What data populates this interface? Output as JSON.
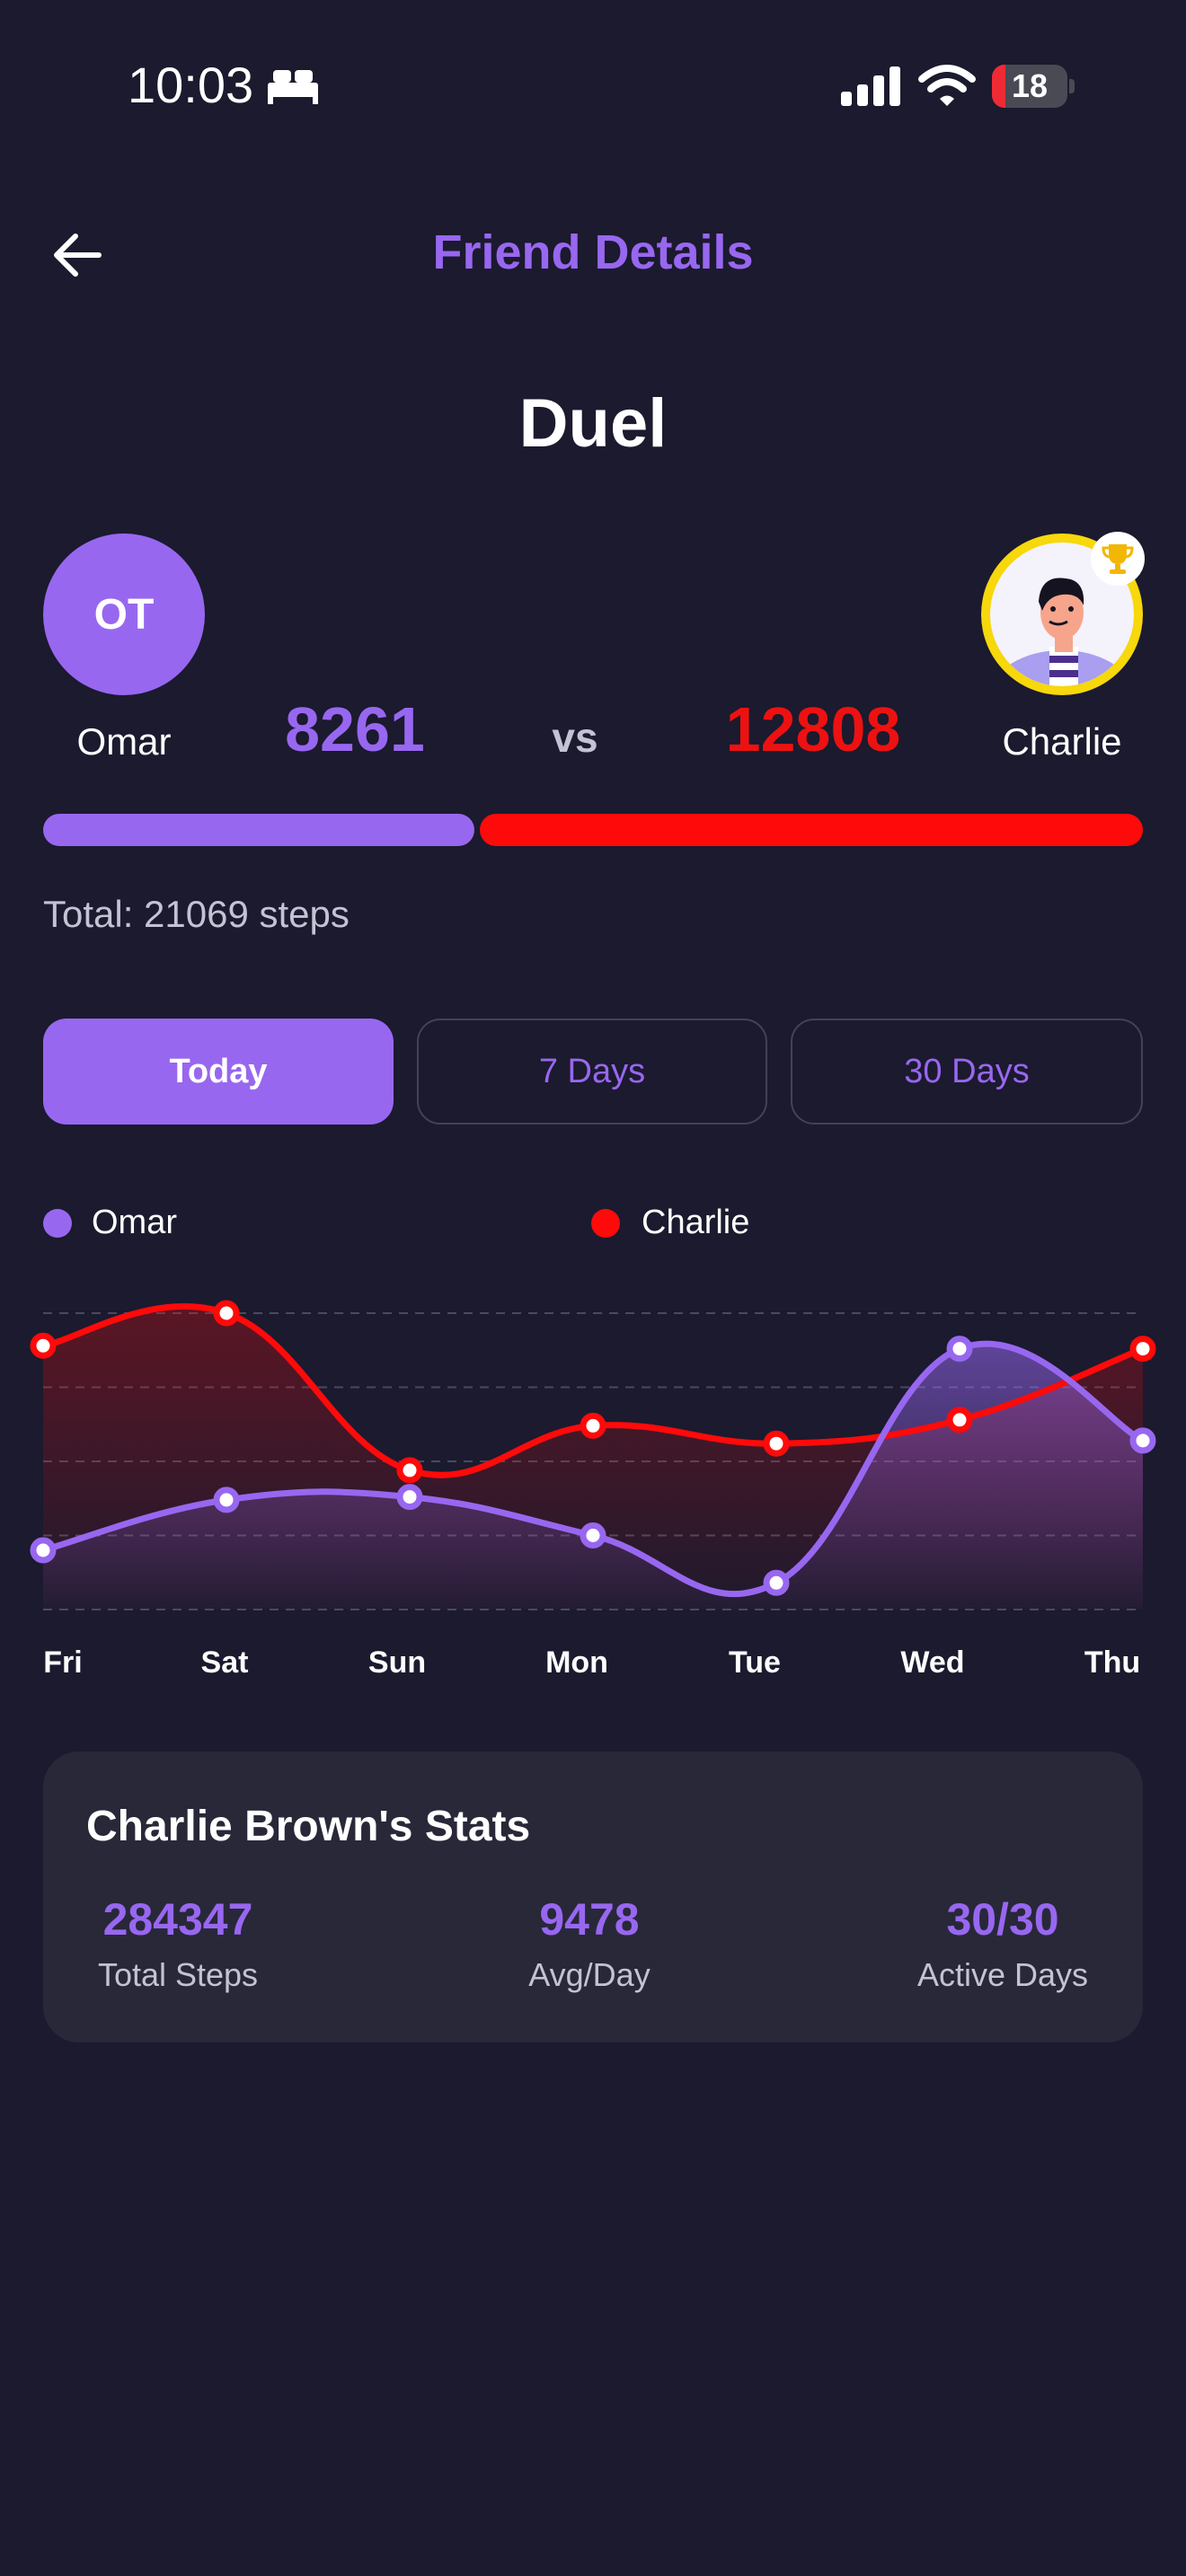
{
  "status_bar": {
    "time": "10:03",
    "battery": "18",
    "battery_level": 0.18
  },
  "header": {
    "title": "Friend Details"
  },
  "duel": {
    "title": "Duel",
    "vs": "vs",
    "player1": {
      "initials": "OT",
      "name": "Omar",
      "steps": "8261",
      "color": "#9867f0"
    },
    "player2": {
      "name": "Charlie",
      "steps": "12808",
      "color": "#ff0a0a"
    },
    "total": "Total: 21069 steps",
    "player1_share": 0.392
  },
  "tabs": [
    {
      "label": "Today",
      "active": true
    },
    {
      "label": "7 Days",
      "active": false
    },
    {
      "label": "30 Days",
      "active": false
    }
  ],
  "chart_data": {
    "type": "area",
    "categories": [
      "Fri",
      "Sat",
      "Sun",
      "Mon",
      "Tue",
      "Wed",
      "Thu"
    ],
    "series": [
      {
        "name": "Omar",
        "color": "#9867f0",
        "values": [
          0.2,
          0.37,
          0.38,
          0.25,
          0.09,
          0.88,
          0.57
        ]
      },
      {
        "name": "Charlie",
        "color": "#ff0a0a",
        "values": [
          0.89,
          1.0,
          0.47,
          0.62,
          0.56,
          0.64,
          0.88
        ]
      }
    ],
    "grid": true,
    "legend": "top"
  },
  "stats": {
    "title": "Charlie Brown's Stats",
    "items": [
      {
        "value": "284347",
        "label": "Total Steps"
      },
      {
        "value": "9478",
        "label": "Avg/Day"
      },
      {
        "value": "30/30",
        "label": "Active Days"
      }
    ]
  }
}
